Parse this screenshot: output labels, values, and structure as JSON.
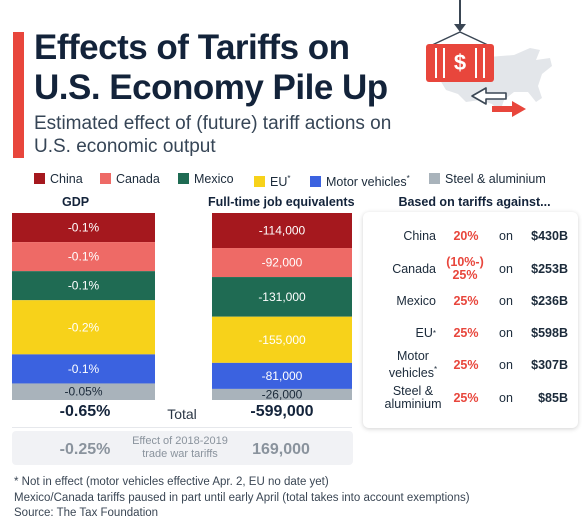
{
  "header": {
    "title": "Effects of Tariffs on U.S. Economy Pile Up",
    "subtitle": "Estimated effect of (future) tariff actions on U.S. economic output"
  },
  "legend": [
    {
      "label": "China",
      "color": "#a5181e",
      "sup": ""
    },
    {
      "label": "Canada",
      "color": "#ee6a66",
      "sup": ""
    },
    {
      "label": "Mexico",
      "color": "#1f6b53",
      "sup": ""
    },
    {
      "label": "EU",
      "color": "#f7d21a",
      "sup": "*"
    },
    {
      "label": "Motor vehicles",
      "color": "#3b62e0",
      "sup": "*"
    },
    {
      "label": "Steel & aluminium",
      "color": "#a9b3bb",
      "sup": ""
    }
  ],
  "chart_data": [
    {
      "type": "bar",
      "title": "GDP",
      "categories": [
        "China",
        "Canada",
        "Mexico",
        "EU",
        "Motor vehicles",
        "Steel & aluminium"
      ],
      "values": [
        -0.1,
        -0.1,
        -0.1,
        -0.2,
        -0.1,
        -0.05
      ],
      "value_labels": [
        "-0.1%",
        "-0.1%",
        "-0.1%",
        "-0.2%",
        "-0.1%",
        "-0.05%"
      ],
      "total": -0.65,
      "total_label": "-0.65%"
    },
    {
      "type": "bar",
      "title": "Full-time job equivalents",
      "categories": [
        "China",
        "Canada",
        "Mexico",
        "EU",
        "Motor vehicles",
        "Steel & aluminium"
      ],
      "values": [
        -114000,
        -92000,
        -131000,
        -155000,
        -81000,
        -26000
      ],
      "value_labels": [
        "-114,000",
        "-92,000",
        "-131,000",
        "-155,000",
        "-81,000",
        "-26,000"
      ],
      "total": -599000,
      "total_label": "-599,000"
    }
  ],
  "totals": {
    "label": "Total"
  },
  "effect_2018": {
    "gdp": "-0.25%",
    "label": "Effect of 2018-2019 trade war tariffs",
    "jobs": "169,000"
  },
  "tariffs": {
    "header": "Based on tariffs against...",
    "on_label": "on",
    "rows": [
      {
        "name": "China",
        "sup": "",
        "rate": "20%",
        "amount": "$430B"
      },
      {
        "name": "Canada",
        "sup": "",
        "rate": "(10%-) 25%",
        "amount": "$253B"
      },
      {
        "name": "Mexico",
        "sup": "",
        "rate": "25%",
        "amount": "$236B"
      },
      {
        "name": "EU",
        "sup": "*",
        "rate": "25%",
        "amount": "$598B"
      },
      {
        "name": "Motor vehicles",
        "sup": "*",
        "rate": "25%",
        "amount": "$307B"
      },
      {
        "name": "Steel & aluminium",
        "sup": "",
        "rate": "25%",
        "amount": "$85B"
      }
    ]
  },
  "footnotes": [
    "* Not in effect (motor vehicles effective Apr. 2, EU no date yet)",
    "Mexico/Canada tariffs paused in part until early April (total takes into account exemptions)",
    "Source: The Tax Foundation"
  ],
  "illustration": {
    "icons": [
      "crane-hook-icon",
      "shipping-container-icon",
      "dollar-sign-icon",
      "us-map-icon",
      "trade-arrows-icon"
    ],
    "container_color": "#e8463c"
  }
}
